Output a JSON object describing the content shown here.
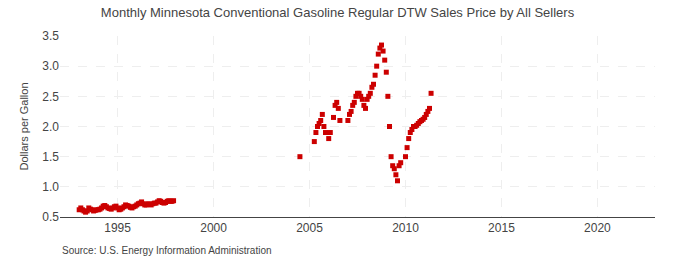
{
  "chart_data": {
    "type": "scatter",
    "title": "Monthly Minnesota Conventional Gasoline Regular DTW Sales Price by All Sellers",
    "ylabel": "Dollars per Gallon",
    "annotations": [
      "Source: U.S. Energy Information Administration"
    ],
    "color": "#cc0000",
    "marker": "square",
    "grid": true,
    "xlim": [
      1992.0,
      2023.0
    ],
    "ylim": [
      0.5,
      3.5
    ],
    "xticks": [
      1995,
      2000,
      2005,
      2010,
      2015,
      2020
    ],
    "yticks": [
      0.5,
      {
        "value": 1.0,
        "label": "1.0"
      },
      1.5,
      {
        "value": 2.0,
        "label": "2.0"
      },
      2.5,
      {
        "value": 3.0,
        "label": "3.0"
      },
      3.5
    ],
    "x": [
      1993.0,
      1993.083,
      1993.167,
      1993.25,
      1993.333,
      1993.417,
      1993.5,
      1993.583,
      1993.667,
      1993.75,
      1993.833,
      1993.917,
      1994.0,
      1994.083,
      1994.167,
      1994.25,
      1994.333,
      1994.417,
      1994.5,
      1994.583,
      1994.667,
      1994.75,
      1994.833,
      1994.917,
      1995.0,
      1995.083,
      1995.167,
      1995.25,
      1995.333,
      1995.417,
      1995.5,
      1995.583,
      1995.667,
      1995.75,
      1995.833,
      1995.917,
      1996.0,
      1996.083,
      1996.167,
      1996.25,
      1996.333,
      1996.417,
      1996.5,
      1996.583,
      1996.667,
      1996.75,
      1996.833,
      1996.917,
      1997.0,
      1997.083,
      1997.167,
      1997.25,
      1997.333,
      1997.417,
      1997.5,
      1997.583,
      1997.667,
      1997.75,
      1997.833,
      1997.917,
      2004.5,
      2005.25,
      2005.333,
      2005.417,
      2005.5,
      2005.583,
      2005.667,
      2005.75,
      2005.833,
      2006.0,
      2006.083,
      2006.25,
      2006.333,
      2006.417,
      2006.5,
      2006.583,
      2007.0,
      2007.083,
      2007.167,
      2007.25,
      2007.333,
      2007.417,
      2007.5,
      2007.583,
      2007.667,
      2007.75,
      2007.833,
      2007.917,
      2008.0,
      2008.083,
      2008.167,
      2008.25,
      2008.333,
      2008.417,
      2008.5,
      2008.583,
      2008.667,
      2008.75,
      2008.833,
      2008.917,
      2009.0,
      2009.083,
      2009.167,
      2009.25,
      2009.333,
      2009.417,
      2009.5,
      2009.583,
      2009.667,
      2009.75,
      2010.0,
      2010.083,
      2010.167,
      2010.25,
      2010.333,
      2010.417,
      2010.5,
      2010.583,
      2010.667,
      2010.75,
      2010.833,
      2010.917,
      2011.0,
      2011.083,
      2011.167,
      2011.25,
      2011.333
    ],
    "values": [
      0.62,
      0.65,
      0.62,
      0.6,
      0.58,
      0.6,
      0.65,
      0.63,
      0.62,
      0.6,
      0.61,
      0.62,
      0.62,
      0.63,
      0.65,
      0.68,
      0.69,
      0.67,
      0.65,
      0.64,
      0.63,
      0.65,
      0.67,
      0.68,
      0.65,
      0.62,
      0.63,
      0.65,
      0.67,
      0.7,
      0.69,
      0.68,
      0.66,
      0.65,
      0.67,
      0.68,
      0.7,
      0.72,
      0.73,
      0.75,
      0.72,
      0.7,
      0.7,
      0.72,
      0.71,
      0.7,
      0.72,
      0.73,
      0.73,
      0.75,
      0.77,
      0.76,
      0.74,
      0.73,
      0.74,
      0.76,
      0.77,
      0.76,
      0.76,
      0.77,
      1.5,
      1.75,
      1.9,
      2.0,
      2.05,
      2.1,
      2.2,
      2.0,
      1.9,
      1.8,
      1.9,
      2.15,
      2.35,
      2.4,
      2.3,
      2.1,
      2.1,
      2.2,
      2.25,
      2.35,
      2.4,
      2.5,
      2.55,
      2.55,
      2.5,
      2.45,
      2.35,
      2.3,
      2.45,
      2.5,
      2.55,
      2.65,
      2.7,
      2.85,
      3.0,
      3.2,
      3.3,
      3.35,
      3.25,
      3.1,
      2.9,
      2.5,
      2.0,
      1.5,
      1.35,
      1.3,
      1.2,
      1.1,
      1.35,
      1.4,
      1.5,
      1.65,
      1.8,
      1.9,
      1.95,
      2.0,
      2.0,
      2.02,
      2.05,
      2.08,
      2.1,
      2.12,
      2.15,
      2.2,
      2.25,
      2.3,
      2.55
    ]
  }
}
